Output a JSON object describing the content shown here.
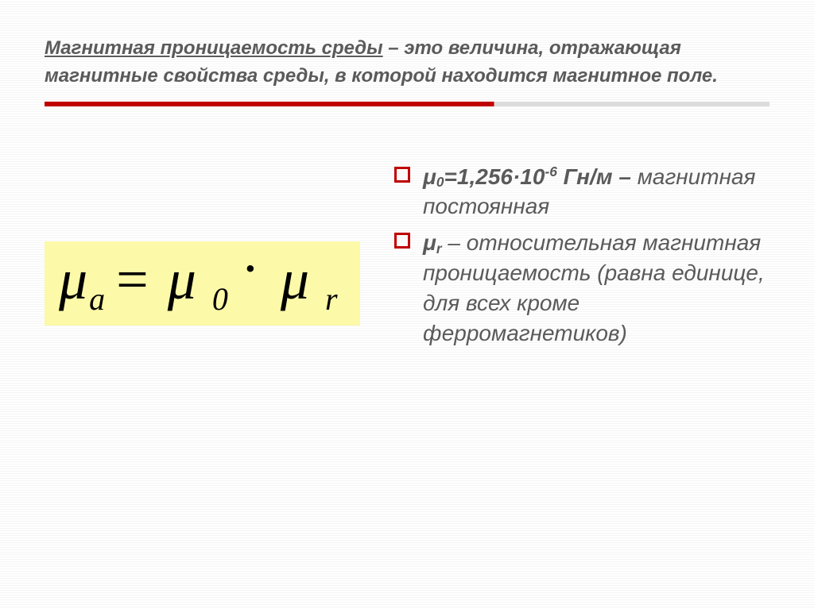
{
  "title": {
    "underlined": "Магнитная проницаемость среды",
    "rest": " – это величина, отражающая магнитные свойства среды, в которой находится магнитное поле."
  },
  "formula": {
    "mu": "μ",
    "sub_a": "а",
    "eq": "=",
    "sub_0": "0",
    "dot": "·",
    "sub_r": "r",
    "background_color": "#fcf9a8"
  },
  "bullets": [
    {
      "bold_html": "μ<span class='subsc'>0</span>=1,256·10<span class='supsc'>-6</span> Гн/м – ",
      "rest": "магнитная постоянная"
    },
    {
      "bold_html": "μ<span class='subsc'>r</span>",
      "rest": " – относительная магнитная проницаемость (равна единице, для всех кроме ферромагнетиков)"
    }
  ],
  "colors": {
    "accent": "#c00000",
    "text": "#5a5a5a",
    "divider_grey": "#dcdcdc"
  }
}
